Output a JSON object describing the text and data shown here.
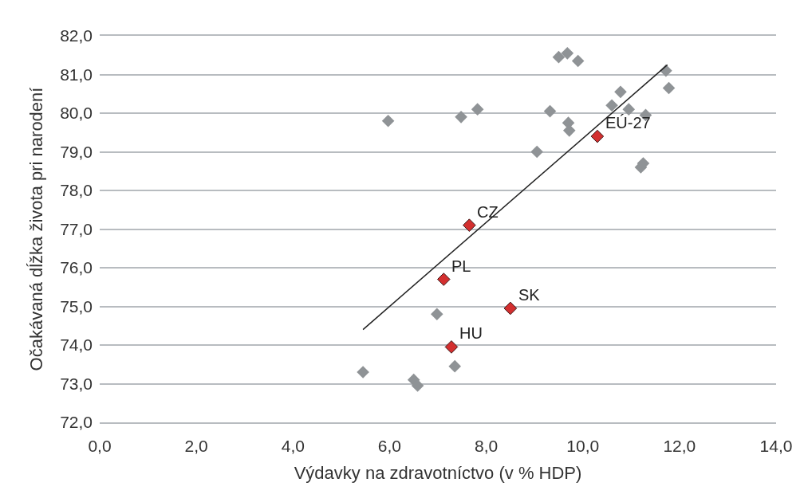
{
  "chart_data": {
    "type": "scatter",
    "xlabel": "Výdavky na zdravotníctvo (v % HDP)",
    "ylabel": "Očakávaná dĺžka života pri narodení",
    "series": [
      {
        "color": "#8f9396",
        "marker": "diamond",
        "x": [
          5.45,
          5.97,
          6.5,
          6.58,
          6.98,
          7.35,
          7.48,
          7.82,
          9.05,
          9.32,
          9.5,
          9.68,
          9.9,
          9.7,
          9.72,
          10.6,
          10.78,
          10.95,
          11.2,
          11.25,
          11.3,
          11.72,
          11.78
        ],
        "values": [
          73.3,
          79.8,
          73.1,
          72.95,
          74.8,
          73.45,
          79.9,
          80.1,
          79.0,
          80.05,
          81.45,
          81.55,
          81.35,
          79.75,
          79.55,
          80.2,
          80.55,
          80.1,
          78.6,
          78.7,
          79.95,
          81.1,
          80.65
        ]
      },
      {
        "color": "#d32f2f",
        "marker": "diamond",
        "x": [
          7.65,
          7.12,
          8.5,
          7.28,
          10.3
        ],
        "values": [
          77.1,
          75.7,
          74.95,
          73.95,
          79.4
        ]
      },
      {
        "type": "line",
        "color": "#222222",
        "marker": "none",
        "x": [
          5.45,
          11.75
        ],
        "values": [
          74.4,
          81.25
        ]
      }
    ],
    "annotations": [
      {
        "text": "CZ",
        "x": 7.65,
        "y": 77.1
      },
      {
        "text": "PL",
        "x": 7.12,
        "y": 75.7
      },
      {
        "text": "SK",
        "x": 8.5,
        "y": 74.95
      },
      {
        "text": "HU",
        "x": 7.28,
        "y": 73.95
      },
      {
        "text": "EÚ-27",
        "x": 10.3,
        "y": 79.4
      }
    ],
    "xlim": [
      0,
      14
    ],
    "xticks": [
      {
        "value": 0,
        "label": "0,0"
      },
      {
        "value": 2,
        "label": "2,0"
      },
      {
        "value": 4,
        "label": "4,0"
      },
      {
        "value": 6,
        "label": "6,0"
      },
      {
        "value": 8,
        "label": "8,0"
      },
      {
        "value": 10,
        "label": "10,0"
      },
      {
        "value": 12,
        "label": "12,0"
      },
      {
        "value": 14,
        "label": "14,0"
      }
    ],
    "ylim": [
      72,
      82
    ],
    "yticks": [
      {
        "value": 72,
        "label": "72,0"
      },
      {
        "value": 73,
        "label": "73,0"
      },
      {
        "value": 74,
        "label": "74,0"
      },
      {
        "value": 75,
        "label": "75,0"
      },
      {
        "value": 76,
        "label": "76,0"
      },
      {
        "value": 77,
        "label": "77,0"
      },
      {
        "value": 78,
        "label": "78,0"
      },
      {
        "value": 79,
        "label": "79,0"
      },
      {
        "value": 80,
        "label": "80,0"
      },
      {
        "value": 81,
        "label": "81,0"
      },
      {
        "value": 82,
        "label": "82,0"
      }
    ],
    "grid": "y"
  }
}
